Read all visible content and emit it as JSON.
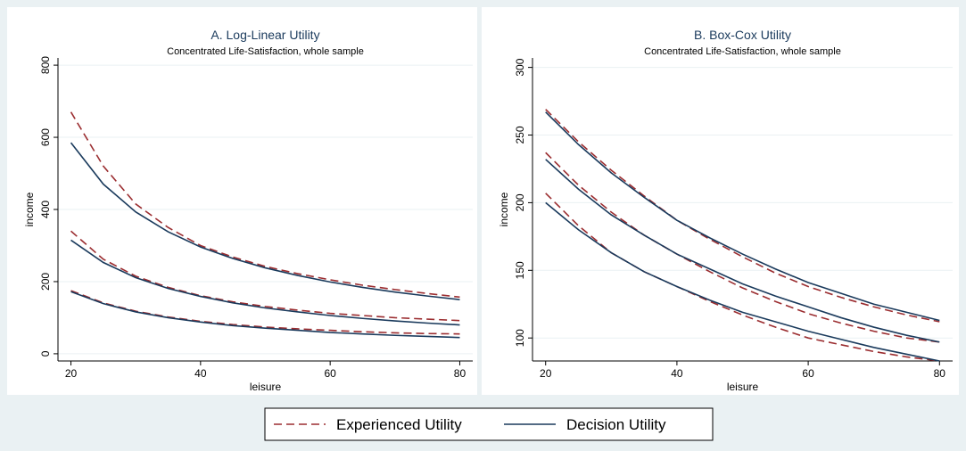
{
  "chart_data": [
    {
      "type": "line",
      "title": "A. Log-Linear Utility",
      "subtitle": "Concentrated Life-Satisfaction, whole sample",
      "x_label": "leisure",
      "y_label": "income",
      "x": [
        20,
        25,
        30,
        35,
        40,
        45,
        50,
        55,
        60,
        65,
        70,
        75,
        80
      ],
      "xlim": [
        18,
        82
      ],
      "xticks": [
        20,
        40,
        60,
        80
      ],
      "ylim": [
        -20,
        820
      ],
      "yticks": [
        0,
        200,
        400,
        600,
        800
      ],
      "grid": true,
      "series": [
        {
          "name": "Experienced Utility",
          "color": "#9b2d30",
          "dashed": true,
          "values": [
            [
              670,
              520,
              415,
              350,
              300,
              268,
              242,
              222,
              205,
              190,
              178,
              167,
              157
            ],
            [
              340,
              262,
              215,
              184,
              161,
              144,
              131,
              121,
              112,
              106,
              100,
              96,
              92
            ],
            [
              175,
              141,
              118,
              102,
              90,
              81,
              74,
              69,
              65,
              61,
              58,
              56,
              55
            ]
          ]
        },
        {
          "name": "Decision Utility",
          "color": "#1a3a5c",
          "dashed": false,
          "values": [
            [
              585,
              470,
              393,
              338,
              296,
              264,
              238,
              217,
              199,
              184,
              171,
              160,
              150
            ],
            [
              315,
              253,
              211,
              181,
              159,
              141,
              127,
              116,
              106,
              98,
              91,
              85,
              80
            ],
            [
              172,
              139,
              116,
              100,
              88,
              78,
              71,
              65,
              59,
              55,
              51,
              48,
              45
            ]
          ]
        }
      ]
    },
    {
      "type": "line",
      "title": "B. Box-Cox Utility",
      "subtitle": "Concentrated Life-Satisfaction, whole sample",
      "x_label": "leisure",
      "y_label": "income",
      "x": [
        20,
        25,
        30,
        35,
        40,
        45,
        50,
        55,
        60,
        65,
        70,
        75,
        80
      ],
      "xlim": [
        18,
        82
      ],
      "xticks": [
        20,
        40,
        60,
        80
      ],
      "ylim": [
        83,
        307
      ],
      "yticks": [
        100,
        150,
        200,
        250,
        300
      ],
      "grid": true,
      "series": [
        {
          "color": "#9b2d30",
          "dashed": true,
          "values": [
            [
              269,
              245,
              224,
              205,
              187,
              173,
              160,
              148,
              138,
              130,
              123,
              117,
              112
            ],
            [
              237,
              213,
              193,
              176,
              162,
              149,
              137,
              127,
              118,
              111,
              105,
              100,
              97
            ],
            [
              207,
              183,
              163,
              149,
              138,
              127,
              117,
              108,
              100,
              95,
              90,
              86,
              83
            ]
          ]
        },
        {
          "color": "#1a3a5c",
          "dashed": false,
          "values": [
            [
              267,
              243,
              222,
              204,
              187,
              174,
              162,
              151,
              141,
              133,
              125,
              119,
              113
            ],
            [
              232,
              210,
              191,
              176,
              162,
              151,
              140,
              131,
              123,
              115,
              108,
              102,
              97
            ],
            [
              200,
              180,
              163,
              149,
              138,
              128,
              119,
              112,
              105,
              99,
              93,
              88,
              83
            ]
          ]
        }
      ]
    }
  ]
}
